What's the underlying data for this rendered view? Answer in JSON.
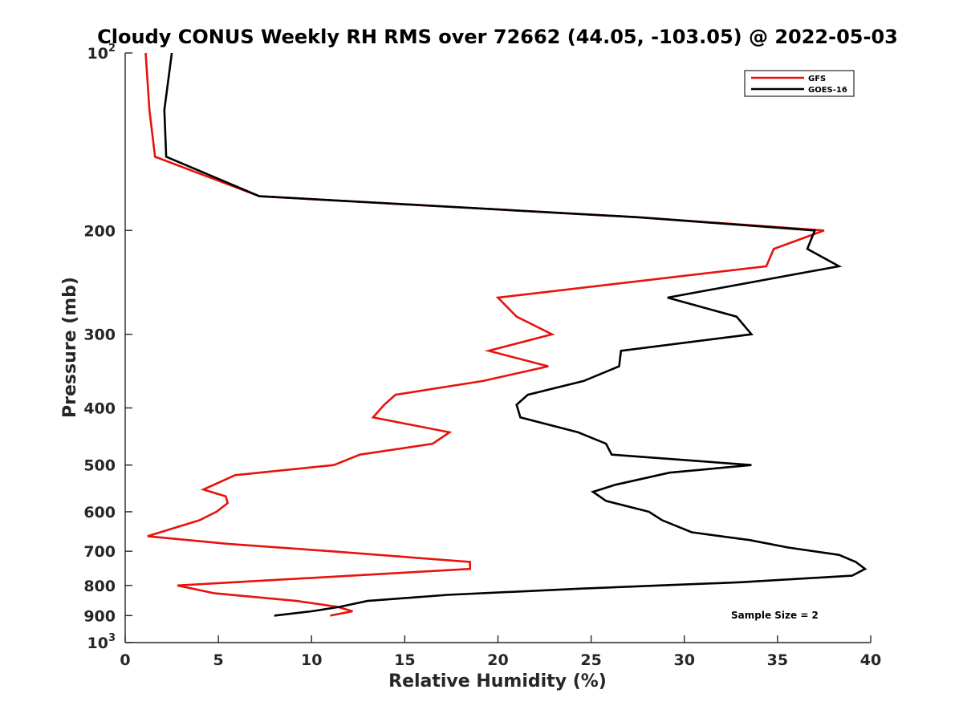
{
  "chart_data": {
    "type": "line",
    "title": "Cloudy CONUS Weekly RH RMS over 72662 (44.05, -103.05) @ 2022-05-03",
    "xlabel": "Relative Humidity (%)",
    "ylabel": "Pressure (mb)",
    "xlim": [
      0,
      40
    ],
    "ylim": [
      100,
      1000
    ],
    "y_scale": "log",
    "y_reversed": true,
    "grid": false,
    "legend_position": "top-right",
    "x_ticks": [
      "0",
      "5",
      "10",
      "15",
      "20",
      "25",
      "30",
      "35",
      "40"
    ],
    "y_ticks": [
      {
        "value": 100,
        "base": "10",
        "exp": "2"
      },
      {
        "value": 200,
        "label": "200"
      },
      {
        "value": 300,
        "label": "300"
      },
      {
        "value": 400,
        "label": "400"
      },
      {
        "value": 500,
        "label": "500"
      },
      {
        "value": 600,
        "label": "600"
      },
      {
        "value": 700,
        "label": "700"
      },
      {
        "value": 800,
        "label": "800"
      },
      {
        "value": 900,
        "label": "900"
      },
      {
        "value": 1000,
        "base": "10",
        "exp": "3"
      }
    ],
    "series": [
      {
        "name": "GFS",
        "color": "#e8120c",
        "points": [
          [
            1.1,
            100
          ],
          [
            1.3,
            125
          ],
          [
            1.6,
            150
          ],
          [
            7.2,
            175
          ],
          [
            27.6,
            190
          ],
          [
            37.5,
            200
          ],
          [
            34.8,
            215
          ],
          [
            34.4,
            230
          ],
          [
            20.0,
            260
          ],
          [
            21.0,
            280
          ],
          [
            22.9,
            300
          ],
          [
            19.5,
            320
          ],
          [
            22.7,
            340
          ],
          [
            19.2,
            360
          ],
          [
            14.5,
            380
          ],
          [
            13.9,
            395
          ],
          [
            13.3,
            415
          ],
          [
            17.4,
            440
          ],
          [
            16.5,
            460
          ],
          [
            12.6,
            480
          ],
          [
            11.2,
            500
          ],
          [
            5.9,
            520
          ],
          [
            4.2,
            550
          ],
          [
            5.4,
            565
          ],
          [
            5.5,
            580
          ],
          [
            4.9,
            600
          ],
          [
            4.0,
            620
          ],
          [
            1.2,
            660
          ],
          [
            5.5,
            680
          ],
          [
            11.0,
            700
          ],
          [
            18.5,
            730
          ],
          [
            18.5,
            750
          ],
          [
            2.8,
            800
          ],
          [
            4.8,
            825
          ],
          [
            9.2,
            850
          ],
          [
            11.4,
            870
          ],
          [
            12.2,
            885
          ],
          [
            11.0,
            900
          ]
        ]
      },
      {
        "name": "GOES-16",
        "color": "#000000",
        "points": [
          [
            2.5,
            100
          ],
          [
            2.1,
            125
          ],
          [
            2.2,
            150
          ],
          [
            7.2,
            175
          ],
          [
            27.6,
            190
          ],
          [
            37.0,
            200
          ],
          [
            36.6,
            215
          ],
          [
            38.3,
            230
          ],
          [
            29.1,
            260
          ],
          [
            32.8,
            280
          ],
          [
            33.6,
            300
          ],
          [
            26.6,
            320
          ],
          [
            26.5,
            340
          ],
          [
            24.6,
            360
          ],
          [
            21.6,
            380
          ],
          [
            21.0,
            395
          ],
          [
            21.2,
            415
          ],
          [
            24.3,
            440
          ],
          [
            25.8,
            460
          ],
          [
            26.1,
            480
          ],
          [
            33.6,
            500
          ],
          [
            29.2,
            515
          ],
          [
            26.3,
            540
          ],
          [
            25.1,
            555
          ],
          [
            25.8,
            575
          ],
          [
            28.1,
            600
          ],
          [
            28.8,
            620
          ],
          [
            30.4,
            650
          ],
          [
            33.5,
            670
          ],
          [
            35.6,
            690
          ],
          [
            38.3,
            710
          ],
          [
            39.2,
            730
          ],
          [
            39.7,
            750
          ],
          [
            39.0,
            770
          ],
          [
            33.0,
            790
          ],
          [
            24.5,
            810
          ],
          [
            17.3,
            830
          ],
          [
            13.0,
            850
          ],
          [
            11.5,
            870
          ],
          [
            10.0,
            885
          ],
          [
            8.0,
            900
          ]
        ]
      }
    ],
    "annotation": "Sample Size = 2"
  }
}
